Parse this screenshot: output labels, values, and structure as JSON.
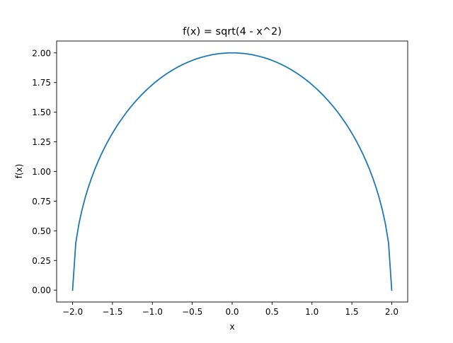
{
  "chart_data": {
    "type": "line",
    "title": "f(x) = sqrt(4 - x^2)",
    "xlabel": "x",
    "ylabel": "f(x)",
    "xlim": [
      -2.2,
      2.2
    ],
    "ylim": [
      -0.1,
      2.1
    ],
    "x_ticks": [
      -2.0,
      -1.5,
      -1.0,
      -0.5,
      0.0,
      0.5,
      1.0,
      1.5,
      2.0
    ],
    "x_tick_labels": [
      "−2.0",
      "−1.5",
      "−1.0",
      "−0.5",
      "0.0",
      "0.5",
      "1.0",
      "1.5",
      "2.0"
    ],
    "y_ticks": [
      0.0,
      0.25,
      0.5,
      0.75,
      1.0,
      1.25,
      1.5,
      1.75,
      2.0
    ],
    "y_tick_labels": [
      "0.00",
      "0.25",
      "0.50",
      "0.75",
      "1.00",
      "1.25",
      "1.50",
      "1.75",
      "2.00"
    ],
    "grid": false,
    "series": [
      {
        "color": "#1f77b4",
        "x": [
          -2.0,
          -1.96,
          -1.92,
          -1.88,
          -1.84,
          -1.8,
          -1.76,
          -1.72,
          -1.68,
          -1.64,
          -1.6,
          -1.56,
          -1.52,
          -1.48,
          -1.44,
          -1.4,
          -1.36,
          -1.32,
          -1.28,
          -1.24,
          -1.2,
          -1.16,
          -1.12,
          -1.08,
          -1.04,
          -1.0,
          -0.96,
          -0.92,
          -0.88,
          -0.84,
          -0.8,
          -0.76,
          -0.72,
          -0.68,
          -0.64,
          -0.6,
          -0.56,
          -0.52,
          -0.48,
          -0.44,
          -0.4,
          -0.36,
          -0.32,
          -0.28,
          -0.24,
          -0.2,
          -0.16,
          -0.12,
          -0.08,
          -0.04,
          0.0,
          0.04,
          0.08,
          0.12,
          0.16,
          0.2,
          0.24,
          0.28,
          0.32,
          0.36,
          0.4,
          0.44,
          0.48,
          0.52,
          0.56,
          0.6,
          0.64,
          0.68,
          0.72,
          0.76,
          0.8,
          0.84,
          0.88,
          0.92,
          0.96,
          1.0,
          1.04,
          1.08,
          1.12,
          1.16,
          1.2,
          1.24,
          1.28,
          1.32,
          1.36,
          1.4,
          1.44,
          1.48,
          1.52,
          1.56,
          1.6,
          1.64,
          1.68,
          1.72,
          1.76,
          1.8,
          1.84,
          1.88,
          1.92,
          1.96,
          2.0
        ],
        "y": [
          0.0,
          0.398,
          0.56,
          0.682,
          0.784,
          0.872,
          0.95,
          1.021,
          1.085,
          1.145,
          1.2,
          1.252,
          1.3,
          1.345,
          1.388,
          1.428,
          1.466,
          1.503,
          1.537,
          1.569,
          1.6,
          1.629,
          1.657,
          1.683,
          1.708,
          1.732,
          1.755,
          1.776,
          1.796,
          1.815,
          1.833,
          1.85,
          1.866,
          1.881,
          1.895,
          1.908,
          1.92,
          1.931,
          1.942,
          1.951,
          1.96,
          1.967,
          1.974,
          1.98,
          1.986,
          1.99,
          1.994,
          1.996,
          1.998,
          2.0,
          2.0,
          2.0,
          1.998,
          1.996,
          1.994,
          1.99,
          1.986,
          1.98,
          1.974,
          1.967,
          1.96,
          1.951,
          1.942,
          1.931,
          1.92,
          1.908,
          1.895,
          1.881,
          1.866,
          1.85,
          1.833,
          1.815,
          1.796,
          1.776,
          1.755,
          1.732,
          1.708,
          1.683,
          1.657,
          1.629,
          1.6,
          1.569,
          1.537,
          1.503,
          1.466,
          1.428,
          1.388,
          1.345,
          1.3,
          1.252,
          1.2,
          1.145,
          1.085,
          1.021,
          0.95,
          0.872,
          0.784,
          0.682,
          0.56,
          0.398,
          0.0
        ]
      }
    ]
  }
}
